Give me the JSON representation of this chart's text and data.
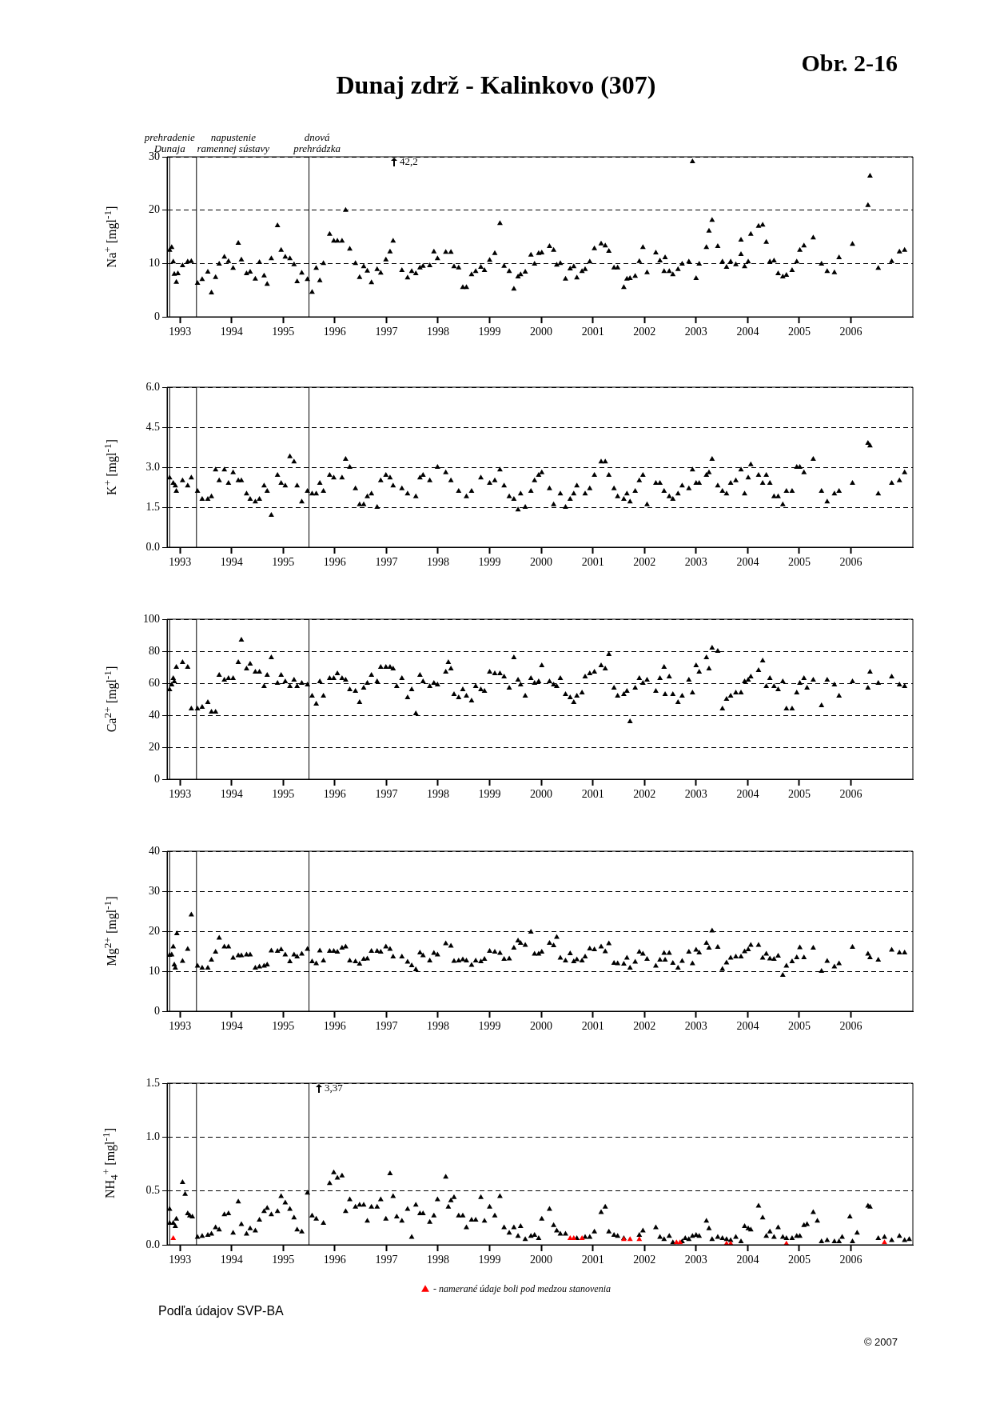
{
  "chart_data": [
    {
      "type": "scatter",
      "title": "Dunaj zdrž - Kalinkovo (307)",
      "ylabel": "Na$^{+}$ [mgl$^{-1}$]",
      "xlim": [
        1992.75,
        2007.2
      ],
      "ylim": [
        0,
        30
      ],
      "xticks": [
        1993,
        1994,
        1995,
        1996,
        1997,
        1998,
        1999,
        2000,
        2001,
        2002,
        2003,
        2004,
        2005,
        2006
      ],
      "yticks": [
        0,
        10,
        20,
        30
      ],
      "grid": "y",
      "marker": "triangle",
      "ref_lines": [
        {
          "axis": "x",
          "value": 1992.8,
          "label": "prehradenie\nDunaja"
        },
        {
          "axis": "x",
          "value": 1993.32,
          "label": "napustenie\nramennej sústavy"
        },
        {
          "axis": "x",
          "value": 1995.5,
          "label": "dnová\nprehrádzka"
        }
      ],
      "annotations": [
        "42,2",
        "Obr. 2-16"
      ],
      "series": [
        {
          "color": "#000000",
          "x": [
            1992.8,
            1992.84,
            1992.87,
            1992.89,
            1992.93,
            1992.96,
            1993.05,
            1993.15,
            1993.22,
            1993.34,
            1993.43,
            1993.54,
            1993.61,
            1993.69,
            1993.76,
            1993.86,
            1993.94,
            1994.03,
            1994.13,
            1994.19,
            1994.29,
            1994.36,
            1994.46,
            1994.54,
            1994.63,
            1994.69,
            1994.77,
            1994.89,
            1994.96,
            1995.04,
            1995.13,
            1995.21,
            1995.27,
            1995.36,
            1995.47,
            1995.56,
            1995.64,
            1995.71,
            1995.78,
            1995.9,
            1995.98,
            1996.05,
            1996.14,
            1996.21,
            1996.29,
            1996.4,
            1996.48,
            1996.56,
            1996.63,
            1996.71,
            1996.82,
            1996.89,
            1996.99,
            1997.07,
            1997.13,
            1997.3,
            1997.41,
            1997.49,
            1997.57,
            1997.65,
            1997.71,
            1997.84,
            1997.92,
            1997.99,
            1998.15,
            1998.25,
            1998.31,
            1998.4,
            1998.48,
            1998.55,
            1998.65,
            1998.73,
            1998.83,
            1998.9,
            1999.0,
            1999.1,
            1999.2,
            1999.28,
            1999.38,
            1999.47,
            1999.55,
            1999.6,
            1999.69,
            1999.8,
            1999.87,
            1999.95,
            2000.01,
            2000.16,
            2000.24,
            2000.3,
            2000.37,
            2000.47,
            2000.56,
            2000.63,
            2000.69,
            2000.79,
            2000.85,
            2000.94,
            2001.03,
            2001.16,
            2001.24,
            2001.31,
            2001.41,
            2001.48,
            2001.6,
            2001.66,
            2001.72,
            2001.82,
            2001.9,
            2001.97,
            2002.05,
            2002.22,
            2002.3,
            2002.38,
            2002.4,
            2002.48,
            2002.55,
            2002.65,
            2002.73,
            2002.86,
            2002.93,
            2003.0,
            2003.06,
            2003.2,
            2003.25,
            2003.31,
            2003.42,
            2003.51,
            2003.59,
            2003.67,
            2003.77,
            2003.87,
            2003.87,
            2003.94,
            2004.01,
            2004.06,
            2004.21,
            2004.29,
            2004.36,
            2004.43,
            2004.51,
            2004.59,
            2004.68,
            2004.75,
            2004.86,
            2004.95,
            2005.01,
            2005.09,
            2005.27,
            2005.43,
            2005.54,
            2005.68,
            2005.77,
            2006.03,
            2006.33,
            2006.37,
            2006.53,
            2006.79,
            2006.94,
            2007.04
          ],
          "values": [
            12.5,
            13,
            10.3,
            8,
            6.5,
            8.1,
            9.6,
            10.3,
            10.4,
            6.3,
            7,
            8.4,
            4.5,
            7.4,
            9.9,
            11.2,
            10.4,
            9.1,
            13.8,
            10.7,
            8.1,
            8.4,
            7.1,
            10.2,
            7.7,
            6.1,
            10.9,
            17.1,
            12.5,
            11.2,
            10.9,
            9.8,
            6.6,
            8.2,
            7,
            4.6,
            9.1,
            6.8,
            10,
            15.5,
            14.2,
            14.2,
            14.2,
            20,
            12.7,
            10,
            7.4,
            9.4,
            8.6,
            6.4,
            8.9,
            8.2,
            10.7,
            12.2,
            14.2,
            8.7,
            7.3,
            8.5,
            8.1,
            9.2,
            9.5,
            9.6,
            12.2,
            10.9,
            12.1,
            12.1,
            9.4,
            9.2,
            5.5,
            5.5,
            7.9,
            8.5,
            9.3,
            8.7,
            10.6,
            11.9,
            17.5,
            9.5,
            8.5,
            5.2,
            7.5,
            7.9,
            8.4,
            11.6,
            9.9,
            11.9,
            12,
            13.2,
            12.5,
            9.7,
            10,
            7.1,
            9,
            9.4,
            7.3,
            8.5,
            8.9,
            10.3,
            12.8,
            13.7,
            13.3,
            12.3,
            9.2,
            9.2,
            5.5,
            7.1,
            7.2,
            7.6,
            10.4,
            13,
            8.3,
            12,
            10.5,
            8.5,
            11.1,
            8.5,
            7.9,
            8.9,
            9.9,
            10.3,
            29.1,
            7.2,
            9.9,
            13,
            16.1,
            18.1,
            13.2,
            10.3,
            9.3,
            10.3,
            9.8,
            14.4,
            11.7,
            9.4,
            10.3,
            15.5,
            17,
            17.2,
            14,
            10.3,
            10.5,
            8.1,
            7.5,
            7.8,
            8.7,
            10.3,
            12.5,
            13.3,
            14.8,
            9.9,
            8.5,
            8.3,
            11.1,
            13.6,
            20.9,
            26.4,
            9.1,
            10.4,
            12.2,
            12.5
          ]
        }
      ]
    },
    {
      "type": "scatter",
      "ylabel": "K$^{+}$ [mgl$^{-1}$]",
      "xlim": [
        1992.75,
        2007.2
      ],
      "ylim": [
        0,
        6
      ],
      "xticks": [
        1993,
        1994,
        1995,
        1996,
        1997,
        1998,
        1999,
        2000,
        2001,
        2002,
        2003,
        2004,
        2005,
        2006
      ],
      "yticks": [
        {
          "value": 0,
          "label": "0.0"
        },
        1.5,
        {
          "value": 3,
          "label": "3.0"
        },
        4.5,
        {
          "value": 6,
          "label": "6.0"
        }
      ],
      "grid": "y",
      "marker": "triangle",
      "ref_lines": [
        {
          "axis": "x",
          "value": 1992.8
        },
        {
          "axis": "x",
          "value": 1993.32
        },
        {
          "axis": "x",
          "value": 1995.5
        }
      ],
      "series": [
        {
          "color": "#000000",
          "x": [
            1992.8,
            1992.87,
            1992.91,
            1992.93,
            1993.05,
            1993.15,
            1993.22,
            1993.34,
            1993.43,
            1993.54,
            1993.61,
            1993.69,
            1993.76,
            1993.86,
            1993.94,
            1994.03,
            1994.13,
            1994.19,
            1994.29,
            1994.36,
            1994.46,
            1994.54,
            1994.63,
            1994.69,
            1994.77,
            1994.89,
            1994.96,
            1995.04,
            1995.13,
            1995.21,
            1995.27,
            1995.36,
            1995.47,
            1995.56,
            1995.64,
            1995.71,
            1995.78,
            1995.9,
            1995.98,
            1996.14,
            1996.21,
            1996.29,
            1996.4,
            1996.48,
            1996.56,
            1996.63,
            1996.71,
            1996.82,
            1996.89,
            1996.99,
            1997.07,
            1997.13,
            1997.3,
            1997.41,
            1997.57,
            1997.65,
            1997.71,
            1997.84,
            1997.99,
            1998.15,
            1998.25,
            1998.4,
            1998.55,
            1998.65,
            1998.83,
            1999.0,
            1999.1,
            1999.2,
            1999.28,
            1999.38,
            1999.47,
            1999.55,
            1999.6,
            1999.69,
            1999.8,
            1999.87,
            1999.95,
            2000.01,
            2000.16,
            2000.24,
            2000.37,
            2000.47,
            2000.56,
            2000.63,
            2000.69,
            2000.85,
            2000.94,
            2001.03,
            2001.16,
            2001.24,
            2001.31,
            2001.41,
            2001.48,
            2001.6,
            2001.66,
            2001.72,
            2001.82,
            2001.9,
            2001.97,
            2002.05,
            2002.22,
            2002.3,
            2002.38,
            2002.48,
            2002.55,
            2002.65,
            2002.73,
            2002.86,
            2002.93,
            2003.0,
            2003.06,
            2003.2,
            2003.25,
            2003.31,
            2003.42,
            2003.51,
            2003.59,
            2003.67,
            2003.77,
            2003.87,
            2003.94,
            2004.01,
            2004.06,
            2004.21,
            2004.29,
            2004.36,
            2004.43,
            2004.51,
            2004.59,
            2004.68,
            2004.75,
            2004.86,
            2004.95,
            2005.01,
            2005.09,
            2005.27,
            2005.43,
            2005.54,
            2005.68,
            2005.77,
            2006.03,
            2006.33,
            2006.37,
            2006.53,
            2006.79,
            2006.94,
            2007.04
          ],
          "values": [
            2.6,
            2.4,
            2.3,
            2.1,
            2.5,
            2.3,
            2.6,
            2.1,
            1.8,
            1.8,
            1.9,
            2.9,
            2.5,
            2.9,
            2.4,
            2.8,
            2.5,
            2.5,
            2.0,
            1.8,
            1.7,
            1.8,
            2.3,
            2.1,
            1.2,
            2.7,
            2.4,
            2.3,
            3.4,
            3.2,
            2.3,
            1.7,
            2.1,
            2.0,
            2.0,
            2.4,
            2.1,
            2.7,
            2.6,
            2.6,
            3.3,
            3.0,
            2.2,
            1.6,
            1.6,
            1.9,
            2.0,
            1.5,
            2.5,
            2.7,
            2.6,
            2.3,
            2.2,
            2.0,
            1.9,
            2.6,
            2.7,
            2.5,
            3.0,
            2.8,
            2.5,
            2.1,
            1.9,
            2.1,
            2.6,
            2.4,
            2.5,
            2.9,
            2.3,
            1.9,
            1.8,
            1.4,
            2.0,
            1.5,
            2.1,
            2.5,
            2.7,
            2.8,
            2.2,
            1.6,
            2.0,
            1.5,
            1.8,
            2.0,
            2.3,
            2.0,
            2.2,
            2.7,
            3.2,
            3.2,
            2.7,
            2.2,
            1.9,
            1.8,
            2.0,
            1.7,
            2.1,
            2.5,
            2.7,
            1.6,
            2.4,
            2.4,
            2.1,
            1.9,
            1.8,
            2.0,
            2.3,
            2.2,
            2.9,
            2.4,
            2.4,
            2.7,
            2.8,
            3.3,
            2.3,
            2.1,
            2.0,
            2.4,
            2.5,
            2.9,
            2.0,
            2.6,
            3.1,
            2.7,
            2.4,
            2.7,
            2.4,
            1.9,
            1.9,
            1.6,
            2.1,
            2.1,
            3.0,
            3.0,
            2.8,
            3.3,
            2.1,
            1.7,
            2.0,
            2.1,
            2.4,
            3.9,
            3.8,
            2.0,
            2.4,
            2.5,
            2.8
          ]
        }
      ]
    },
    {
      "type": "scatter",
      "ylabel": "Ca$^{2+}$ [mgl$^{-1}$]",
      "xlim": [
        1992.75,
        2007.2
      ],
      "ylim": [
        0,
        100
      ],
      "xticks": [
        1993,
        1994,
        1995,
        1996,
        1997,
        1998,
        1999,
        2000,
        2001,
        2002,
        2003,
        2004,
        2005,
        2006
      ],
      "yticks": [
        0,
        20,
        40,
        60,
        80,
        100
      ],
      "grid": "y",
      "marker": "triangle",
      "ref_lines": [
        {
          "axis": "x",
          "value": 1992.8
        },
        {
          "axis": "x",
          "value": 1993.32
        },
        {
          "axis": "x",
          "value": 1995.5
        }
      ],
      "series": [
        {
          "color": "#000000",
          "x": [
            1992.8,
            1992.84,
            1992.87,
            1992.89,
            1992.93,
            1993.05,
            1993.15,
            1993.22,
            1993.34,
            1993.43,
            1993.54,
            1993.61,
            1993.69,
            1993.76,
            1993.86,
            1993.94,
            1994.03,
            1994.13,
            1994.19,
            1994.29,
            1994.36,
            1994.46,
            1994.54,
            1994.63,
            1994.69,
            1994.77,
            1994.89,
            1994.96,
            1995.04,
            1995.13,
            1995.21,
            1995.27,
            1995.36,
            1995.47,
            1995.56,
            1995.64,
            1995.71,
            1995.78,
            1995.9,
            1995.98,
            1996.05,
            1996.14,
            1996.21,
            1996.29,
            1996.4,
            1996.48,
            1996.56,
            1996.63,
            1996.71,
            1996.82,
            1996.89,
            1996.99,
            1997.07,
            1997.13,
            1997.2,
            1997.3,
            1997.41,
            1997.49,
            1997.57,
            1997.65,
            1997.71,
            1997.84,
            1997.92,
            1997.99,
            1998.15,
            1998.2,
            1998.25,
            1998.31,
            1998.4,
            1998.48,
            1998.55,
            1998.65,
            1998.73,
            1998.83,
            1998.9,
            1999.0,
            1999.1,
            1999.2,
            1999.28,
            1999.38,
            1999.47,
            1999.55,
            1999.6,
            1999.69,
            1999.8,
            1999.87,
            1999.95,
            2000.01,
            2000.16,
            2000.24,
            2000.3,
            2000.37,
            2000.47,
            2000.56,
            2000.63,
            2000.69,
            2000.79,
            2000.85,
            2000.94,
            2001.03,
            2001.16,
            2001.24,
            2001.31,
            2001.41,
            2001.48,
            2001.6,
            2001.66,
            2001.72,
            2001.82,
            2001.9,
            2001.97,
            2002.05,
            2002.22,
            2002.3,
            2002.38,
            2002.4,
            2002.48,
            2002.55,
            2002.65,
            2002.73,
            2002.86,
            2002.93,
            2003.0,
            2003.06,
            2003.2,
            2003.25,
            2003.31,
            2003.42,
            2003.51,
            2003.59,
            2003.67,
            2003.77,
            2003.87,
            2003.94,
            2004.01,
            2004.06,
            2004.21,
            2004.29,
            2004.36,
            2004.43,
            2004.51,
            2004.59,
            2004.68,
            2004.75,
            2004.86,
            2004.95,
            2005.01,
            2005.09,
            2005.15,
            2005.27,
            2005.43,
            2005.54,
            2005.68,
            2005.77,
            2006.03,
            2006.33,
            2006.37,
            2006.53,
            2006.79,
            2006.94,
            2007.04
          ],
          "values": [
            56,
            59,
            63,
            61,
            70,
            73,
            70,
            44,
            44,
            45,
            48,
            42,
            42,
            65,
            62,
            63,
            63,
            73,
            87,
            69,
            72,
            67,
            67,
            58,
            65,
            76,
            60,
            65,
            61,
            58,
            62,
            58,
            60,
            59,
            52,
            47,
            61,
            52,
            63,
            63,
            66,
            63,
            62,
            56,
            55,
            48,
            57,
            60,
            65,
            61,
            70,
            70,
            70,
            69,
            58,
            63,
            51,
            56,
            41,
            65,
            61,
            58,
            60,
            59,
            67,
            73,
            69,
            53,
            51,
            56,
            52,
            49,
            58,
            56,
            55,
            67,
            66,
            66,
            64,
            57,
            76,
            62,
            59,
            52,
            63,
            60,
            61,
            71,
            61,
            59,
            58,
            63,
            53,
            51,
            48,
            52,
            54,
            64,
            66,
            67,
            71,
            69,
            78,
            57,
            52,
            53,
            55,
            36,
            57,
            63,
            60,
            62,
            55,
            63,
            70,
            53,
            64,
            53,
            48,
            52,
            62,
            54,
            71,
            67,
            76,
            69,
            82,
            80,
            44,
            50,
            52,
            54,
            54,
            61,
            62,
            64,
            68,
            74,
            58,
            63,
            58,
            56,
            61,
            44,
            44,
            54,
            60,
            63,
            57,
            62,
            46,
            62,
            59,
            52,
            61,
            57,
            67,
            60,
            64,
            59,
            58
          ]
        }
      ]
    },
    {
      "type": "scatter",
      "ylabel": "Mg$^{2+}$ [mgl$^{-1}$]",
      "xlim": [
        1992.75,
        2007.2
      ],
      "ylim": [
        0,
        40
      ],
      "xticks": [
        1993,
        1994,
        1995,
        1996,
        1997,
        1998,
        1999,
        2000,
        2001,
        2002,
        2003,
        2004,
        2005,
        2006
      ],
      "yticks": [
        0,
        10,
        20,
        30,
        40
      ],
      "grid": "y",
      "marker": "triangle",
      "ref_lines": [
        {
          "axis": "x",
          "value": 1992.8
        },
        {
          "axis": "x",
          "value": 1993.32
        },
        {
          "axis": "x",
          "value": 1995.5
        }
      ],
      "series": [
        {
          "color": "#000000",
          "x": [
            1992.8,
            1992.84,
            1992.87,
            1992.89,
            1992.91,
            1992.94,
            1993.05,
            1993.15,
            1993.22,
            1993.34,
            1993.43,
            1993.54,
            1993.61,
            1993.69,
            1993.76,
            1993.86,
            1993.94,
            1994.03,
            1994.13,
            1994.19,
            1994.29,
            1994.36,
            1994.46,
            1994.54,
            1994.63,
            1994.69,
            1994.77,
            1994.89,
            1994.96,
            1995.04,
            1995.13,
            1995.21,
            1995.27,
            1995.36,
            1995.47,
            1995.56,
            1995.64,
            1995.71,
            1995.78,
            1995.9,
            1995.98,
            1996.05,
            1996.14,
            1996.21,
            1996.29,
            1996.4,
            1996.48,
            1996.56,
            1996.63,
            1996.71,
            1996.82,
            1996.89,
            1996.99,
            1997.07,
            1997.13,
            1997.3,
            1997.41,
            1997.49,
            1997.57,
            1997.65,
            1997.71,
            1997.84,
            1997.92,
            1997.99,
            1998.15,
            1998.25,
            1998.31,
            1998.4,
            1998.48,
            1998.55,
            1998.65,
            1998.73,
            1998.83,
            1998.9,
            1999.0,
            1999.1,
            1999.2,
            1999.28,
            1999.38,
            1999.47,
            1999.55,
            1999.6,
            1999.69,
            1999.8,
            1999.87,
            1999.95,
            2000.01,
            2000.16,
            2000.24,
            2000.3,
            2000.37,
            2000.47,
            2000.56,
            2000.63,
            2000.69,
            2000.79,
            2000.85,
            2000.94,
            2001.03,
            2001.16,
            2001.24,
            2001.31,
            2001.41,
            2001.48,
            2001.6,
            2001.66,
            2001.72,
            2001.82,
            2001.9,
            2001.97,
            2002.05,
            2002.22,
            2002.3,
            2002.38,
            2002.4,
            2002.48,
            2002.55,
            2002.65,
            2002.73,
            2002.86,
            2002.93,
            2003.0,
            2003.06,
            2003.2,
            2003.25,
            2003.31,
            2003.42,
            2003.51,
            2003.59,
            2003.67,
            2003.77,
            2003.87,
            2003.94,
            2004.01,
            2004.06,
            2004.21,
            2004.29,
            2004.36,
            2004.43,
            2004.51,
            2004.59,
            2004.68,
            2004.75,
            2004.86,
            2004.95,
            2005.01,
            2005.09,
            2005.27,
            2005.43,
            2005.54,
            2005.68,
            2005.77,
            2006.03,
            2006.33,
            2006.37,
            2006.53,
            2006.79,
            2006.94,
            2007.04
          ],
          "values": [
            14,
            14.1,
            16.1,
            11.6,
            10.8,
            19.4,
            12.5,
            15.5,
            24.1,
            11.3,
            10.8,
            10.8,
            12.8,
            14.8,
            18.3,
            16.1,
            16.1,
            13.3,
            13.9,
            13.9,
            14.1,
            14.1,
            10.8,
            11.1,
            11.3,
            11.6,
            15.1,
            15,
            15.4,
            14.1,
            12.4,
            14.1,
            13.6,
            14.3,
            15.5,
            12.4,
            11.9,
            15.1,
            12.6,
            15,
            15,
            14.8,
            15.8,
            16.1,
            12.6,
            12.4,
            11.8,
            13,
            13.1,
            15,
            15,
            14.8,
            16.1,
            15.5,
            13.6,
            13.6,
            12.3,
            11.4,
            10.4,
            14.6,
            13.9,
            12.6,
            14.5,
            14.1,
            16.9,
            16.3,
            12.5,
            12.6,
            12.9,
            12.6,
            11.5,
            12.6,
            12.4,
            13,
            15,
            14.8,
            14.5,
            13,
            13.1,
            15.8,
            17.6,
            17,
            16.5,
            19.8,
            14.3,
            14.3,
            14.8,
            17,
            16.4,
            18.5,
            13.3,
            12.6,
            14.4,
            12.4,
            12.9,
            12.6,
            13.6,
            15.6,
            15.4,
            16.1,
            14.9,
            16.9,
            12,
            11.9,
            11.8,
            13.3,
            10.8,
            12.3,
            14.8,
            14.3,
            13,
            11.3,
            12.8,
            14.5,
            12.8,
            14.5,
            12,
            10.8,
            12.5,
            14.8,
            11.9,
            15.3,
            14.6,
            17,
            15.8,
            20.1,
            16,
            10.5,
            12.1,
            13.3,
            13.6,
            13.6,
            14.9,
            15.4,
            16.5,
            16.5,
            13.3,
            14.3,
            13.1,
            13,
            13.8,
            9,
            11.3,
            12.4,
            13.4,
            15.9,
            13.4,
            15.8,
            10,
            12.5,
            11.1,
            11.9,
            16,
            14.3,
            13.4,
            12.8,
            15.3,
            14.6,
            14.6
          ]
        }
      ]
    },
    {
      "type": "scatter",
      "ylabel": "NH$_{4}$$^{+}$ [mgl$^{-1}$]",
      "xlim": [
        1992.75,
        2007.2
      ],
      "ylim": [
        0,
        1.5
      ],
      "xticks": [
        1993,
        1994,
        1995,
        1996,
        1997,
        1998,
        1999,
        2000,
        2001,
        2002,
        2003,
        2004,
        2005,
        2006
      ],
      "yticks": [
        {
          "value": 0,
          "label": "0.0"
        },
        0.5,
        {
          "value": 1,
          "label": "1.0"
        },
        1.5
      ],
      "grid": "y",
      "marker": "triangle",
      "legend": "bottom",
      "ref_lines": [
        {
          "axis": "x",
          "value": 1992.8
        },
        {
          "axis": "x",
          "value": 1993.32
        },
        {
          "axis": "x",
          "value": 1995.5
        }
      ],
      "annotations": [
        "3,37",
        "Podľa údajov SVP-BA",
        "© 2007"
      ],
      "series": [
        {
          "color": "#000000",
          "x": [
            1992.8,
            1992.8,
            1992.87,
            1992.91,
            1992.93,
            1993.05,
            1993.1,
            1993.15,
            1993.19,
            1993.24,
            1993.34,
            1993.43,
            1993.54,
            1993.61,
            1993.69,
            1993.76,
            1993.86,
            1993.94,
            1994.03,
            1994.13,
            1994.19,
            1994.29,
            1994.36,
            1994.46,
            1994.54,
            1994.63,
            1994.69,
            1994.77,
            1994.89,
            1994.96,
            1995.04,
            1995.13,
            1995.21,
            1995.27,
            1995.36,
            1995.47,
            1995.56,
            1995.64,
            1995.78,
            1995.9,
            1995.98,
            1996.05,
            1996.14,
            1996.21,
            1996.29,
            1996.4,
            1996.48,
            1996.56,
            1996.63,
            1996.71,
            1996.82,
            1996.89,
            1996.99,
            1997.07,
            1997.13,
            1997.2,
            1997.3,
            1997.41,
            1997.49,
            1997.57,
            1997.65,
            1997.71,
            1997.84,
            1997.92,
            1997.99,
            1998.15,
            1998.2,
            1998.25,
            1998.31,
            1998.4,
            1998.48,
            1998.55,
            1998.65,
            1998.73,
            1998.83,
            1998.9,
            1999.0,
            1999.1,
            1999.2,
            1999.28,
            1999.38,
            1999.47,
            1999.55,
            1999.6,
            1999.69,
            1999.8,
            1999.87,
            1999.95,
            2000.01,
            2000.16,
            2000.24,
            2000.3,
            2000.37,
            2000.47,
            2000.69,
            2000.85,
            2000.94,
            2001.03,
            2001.16,
            2001.24,
            2001.31,
            2001.41,
            2001.48,
            2001.6,
            2001.9,
            2001.97,
            2002.22,
            2002.3,
            2002.38,
            2002.48,
            2002.55,
            2002.73,
            2002.79,
            2002.86,
            2002.93,
            2003.0,
            2003.06,
            2003.2,
            2003.25,
            2003.31,
            2003.42,
            2003.51,
            2003.59,
            2003.67,
            2003.77,
            2003.87,
            2003.94,
            2004.01,
            2004.06,
            2004.21,
            2004.29,
            2004.36,
            2004.43,
            2004.51,
            2004.59,
            2004.68,
            2004.75,
            2004.86,
            2004.95,
            2005.01,
            2005.09,
            2005.15,
            2005.27,
            2005.35,
            2005.43,
            2005.54,
            2005.68,
            2005.77,
            2005.83,
            2005.98,
            2006.03,
            2006.12,
            2006.33,
            2006.37,
            2006.53,
            2006.65,
            2006.79,
            2006.94,
            2007.04,
            2007.13
          ],
          "values": [
            0.33,
            0.2,
            0.2,
            0.17,
            0.24,
            0.58,
            0.47,
            0.29,
            0.27,
            0.26,
            0.07,
            0.08,
            0.09,
            0.1,
            0.16,
            0.14,
            0.28,
            0.29,
            0.11,
            0.4,
            0.19,
            0.1,
            0.15,
            0.13,
            0.23,
            0.31,
            0.34,
            0.28,
            0.31,
            0.45,
            0.39,
            0.33,
            0.25,
            0.14,
            0.12,
            0.48,
            0.27,
            0.24,
            0.2,
            0.57,
            0.67,
            0.62,
            0.64,
            0.31,
            0.42,
            0.35,
            0.37,
            0.37,
            0.22,
            0.35,
            0.35,
            0.42,
            0.24,
            0.66,
            0.45,
            0.26,
            0.22,
            0.33,
            0.07,
            0.37,
            0.29,
            0.29,
            0.21,
            0.27,
            0.42,
            0.63,
            0.35,
            0.41,
            0.44,
            0.27,
            0.27,
            0.16,
            0.23,
            0.23,
            0.44,
            0.22,
            0.35,
            0.27,
            0.45,
            0.16,
            0.11,
            0.16,
            0.08,
            0.17,
            0.05,
            0.08,
            0.09,
            0.06,
            0.24,
            0.33,
            0.18,
            0.13,
            0.1,
            0.1,
            0.06,
            0.07,
            0.07,
            0.12,
            0.3,
            0.35,
            0.12,
            0.09,
            0.08,
            0.06,
            0.09,
            0.13,
            0.16,
            0.07,
            0.05,
            0.08,
            0.02,
            0.03,
            0.06,
            0.05,
            0.08,
            0.09,
            0.08,
            0.22,
            0.15,
            0.05,
            0.07,
            0.06,
            0.05,
            0.04,
            0.07,
            0.03,
            0.17,
            0.15,
            0.14,
            0.36,
            0.25,
            0.08,
            0.12,
            0.07,
            0.16,
            0.07,
            0.06,
            0.06,
            0.08,
            0.08,
            0.18,
            0.19,
            0.3,
            0.22,
            0.03,
            0.04,
            0.03,
            0.03,
            0.07,
            0.26,
            0.03,
            0.11,
            0.36,
            0.35,
            0.06,
            0.07,
            0.04,
            0.08,
            0.04,
            0.05
          ]
        },
        {
          "name": "- namerané údaje boli pod medzou stanovenia",
          "color": "#ff0000",
          "x": [
            1992.87,
            2000.56,
            2000.63,
            2000.79,
            2001.6,
            2001.72,
            2001.9,
            2002.62,
            2002.69,
            2003.59,
            2003.67,
            2004.75,
            2006.65
          ],
          "values": [
            0.06,
            0.06,
            0.06,
            0.06,
            0.05,
            0.05,
            0.05,
            0.02,
            0.02,
            0.01,
            0.01,
            0.01,
            0.02
          ]
        }
      ]
    }
  ]
}
